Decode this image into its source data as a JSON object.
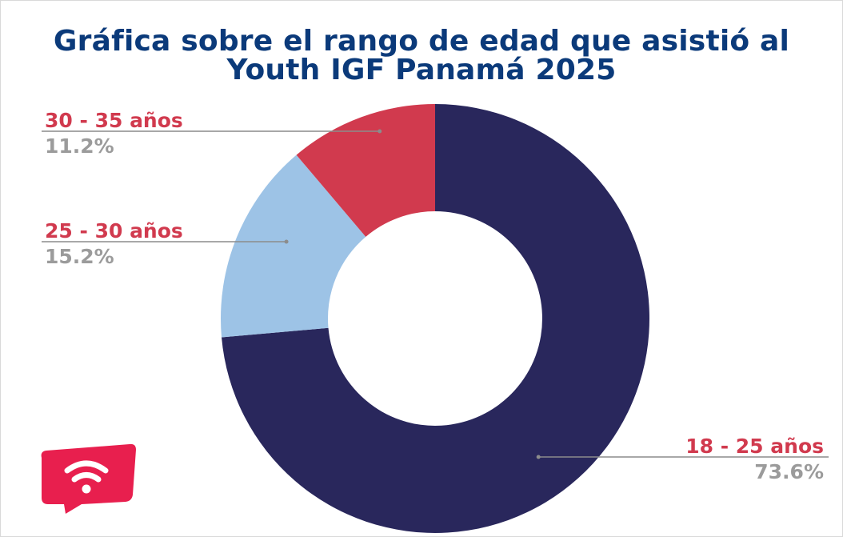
{
  "title": {
    "line1": "Gráfica sobre el rango de edad que asistió al",
    "line2": "Youth IGF Panamá 2025"
  },
  "colors": {
    "title": "#0b3a7a",
    "category_label": "#d13a4e",
    "percent_label": "#9b9b9b",
    "logo": "#e81f4e"
  },
  "logo": {
    "icon": "wifi-chat-bubble-icon"
  },
  "chart_data": {
    "type": "pie",
    "donut": true,
    "categories": [
      "18 - 25 años",
      "25 - 30 años",
      "30 - 35 años"
    ],
    "values": [
      73.6,
      15.2,
      11.2
    ],
    "labels": [
      "73.6%",
      "15.2%",
      "11.2%"
    ],
    "colors": [
      "#29275c",
      "#9dc3e6",
      "#d13a4e"
    ]
  }
}
